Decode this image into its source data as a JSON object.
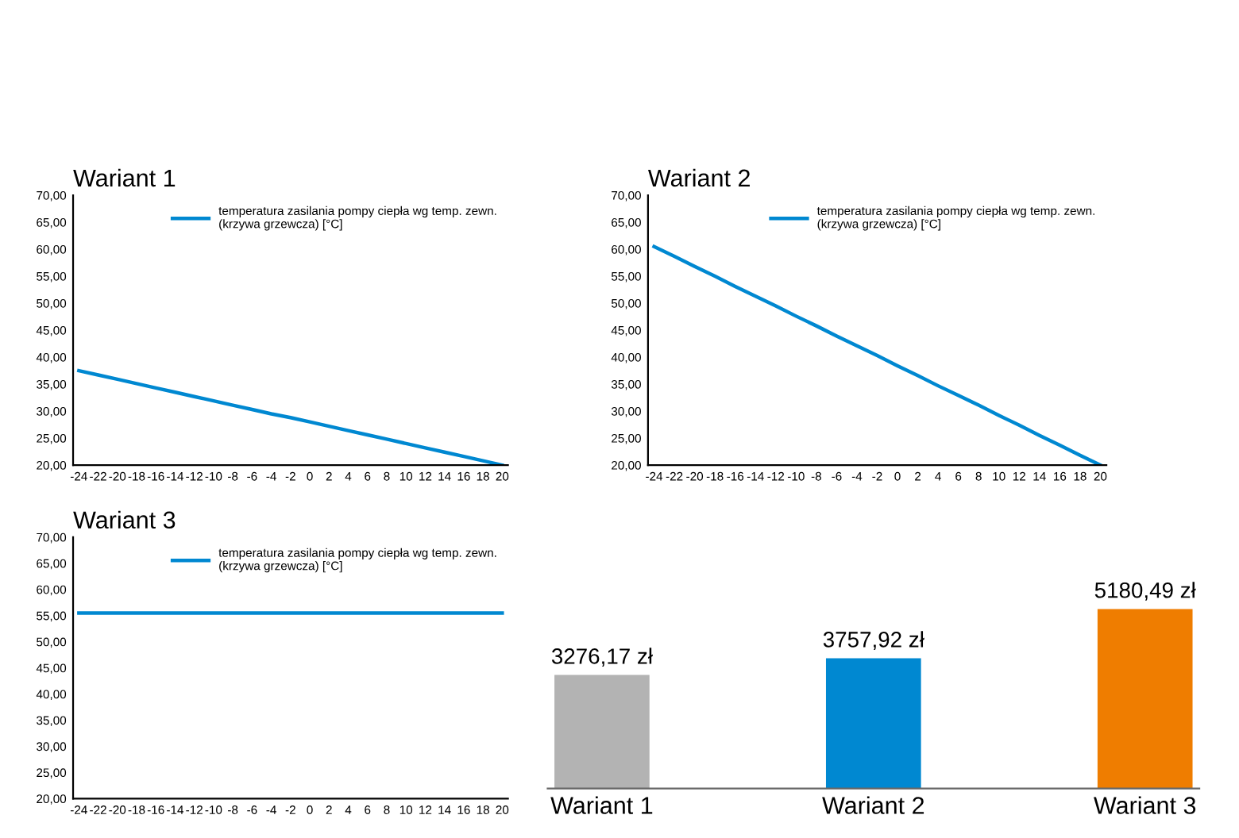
{
  "chart_data": [
    {
      "type": "line",
      "title": "Wariant 1",
      "categories": [
        "-24",
        "-22",
        "-20",
        "-18",
        "-16",
        "-14",
        "-12",
        "-10",
        "-8",
        "-6",
        "-4",
        "-2",
        "0",
        "2",
        "4",
        "6",
        "8",
        "10",
        "12",
        "14",
        "16",
        "18",
        "20"
      ],
      "series": [
        {
          "name": "temperatura zasilania pompy ciepła wg temp. zewn.\n(krzywa grzewcza) [°C]",
          "color": "#0088d1",
          "values": [
            37.5,
            36.7,
            35.9,
            35.1,
            34.3,
            33.5,
            32.7,
            31.9,
            31.1,
            30.3,
            29.5,
            28.8,
            28.0,
            27.2,
            26.4,
            25.6,
            24.8,
            24.0,
            23.2,
            22.4,
            21.6,
            20.8,
            20.0
          ]
        }
      ],
      "ylim": [
        20,
        70
      ],
      "yticks": [
        {
          "value": 20,
          "label": "20,00"
        },
        {
          "value": 25,
          "label": "25,00"
        },
        {
          "value": 30,
          "label": "30,00"
        },
        {
          "value": 35,
          "label": "35,00"
        },
        {
          "value": 40,
          "label": "40,00"
        },
        {
          "value": 45,
          "label": "45,00"
        },
        {
          "value": 50,
          "label": "50,00"
        },
        {
          "value": 55,
          "label": "55,00"
        },
        {
          "value": 60,
          "label": "60,00"
        },
        {
          "value": 65,
          "label": "65,00"
        },
        {
          "value": 70,
          "label": "70,00"
        }
      ],
      "legend": "top right",
      "grid": false
    },
    {
      "type": "line",
      "title": "Wariant 2",
      "categories": [
        "-24",
        "-22",
        "-20",
        "-18",
        "-16",
        "-14",
        "-12",
        "-10",
        "-8",
        "-6",
        "-4",
        "-2",
        "0",
        "2",
        "4",
        "6",
        "8",
        "10",
        "12",
        "14",
        "16",
        "18",
        "20"
      ],
      "series": [
        {
          "name": "temperatura zasilania pompy ciepła wg temp. zewn.\n(krzywa grzewcza) [°C]",
          "color": "#0088d1",
          "values": [
            60.5,
            58.7,
            56.8,
            55.0,
            53.1,
            51.3,
            49.5,
            47.6,
            45.8,
            43.9,
            42.1,
            40.3,
            38.4,
            36.6,
            34.7,
            32.9,
            31.1,
            29.2,
            27.4,
            25.5,
            23.7,
            21.8,
            20.0
          ]
        }
      ],
      "ylim": [
        20,
        70
      ],
      "yticks": [
        {
          "value": 20,
          "label": "20,00"
        },
        {
          "value": 25,
          "label": "25,00"
        },
        {
          "value": 30,
          "label": "30,00"
        },
        {
          "value": 35,
          "label": "35,00"
        },
        {
          "value": 40,
          "label": "40,00"
        },
        {
          "value": 45,
          "label": "45,00"
        },
        {
          "value": 50,
          "label": "50,00"
        },
        {
          "value": 55,
          "label": "55,00"
        },
        {
          "value": 60,
          "label": "60,00"
        },
        {
          "value": 65,
          "label": "65,00"
        },
        {
          "value": 70,
          "label": "70,00"
        }
      ],
      "legend": "top right",
      "grid": false
    },
    {
      "type": "line",
      "title": "Wariant 3",
      "categories": [
        "-24",
        "-22",
        "-20",
        "-18",
        "-16",
        "-14",
        "-12",
        "-10",
        "-8",
        "-6",
        "-4",
        "-2",
        "0",
        "2",
        "4",
        "6",
        "8",
        "10",
        "12",
        "14",
        "16",
        "18",
        "20"
      ],
      "series": [
        {
          "name": "temperatura zasilania pompy ciepła wg temp. zewn.\n(krzywa grzewcza) [°C]",
          "color": "#0088d1",
          "values": [
            55.5,
            55.5,
            55.5,
            55.5,
            55.5,
            55.5,
            55.5,
            55.5,
            55.5,
            55.5,
            55.5,
            55.5,
            55.5,
            55.5,
            55.5,
            55.5,
            55.5,
            55.5,
            55.5,
            55.5,
            55.5,
            55.5,
            55.5
          ]
        }
      ],
      "ylim": [
        20,
        70
      ],
      "yticks": [
        {
          "value": 20,
          "label": "20,00"
        },
        {
          "value": 25,
          "label": "25,00"
        },
        {
          "value": 30,
          "label": "30,00"
        },
        {
          "value": 35,
          "label": "35,00"
        },
        {
          "value": 40,
          "label": "40,00"
        },
        {
          "value": 45,
          "label": "45,00"
        },
        {
          "value": 50,
          "label": "50,00"
        },
        {
          "value": 55,
          "label": "55,00"
        },
        {
          "value": 60,
          "label": "60,00"
        },
        {
          "value": 65,
          "label": "65,00"
        },
        {
          "value": 70,
          "label": "70,00"
        }
      ],
      "legend": "top right",
      "grid": false
    },
    {
      "type": "bar",
      "categories": [
        "Wariant 1",
        "Wariant 2",
        "Wariant 3"
      ],
      "values": [
        3276.17,
        3757.92,
        5180.49
      ],
      "colors": [
        "#b3b3b3",
        "#0088d1",
        "#ef7d00"
      ],
      "value_labels": [
        "3276,17 zł",
        "3757,92 zł",
        "5180,49 zł"
      ],
      "grid": false
    }
  ]
}
